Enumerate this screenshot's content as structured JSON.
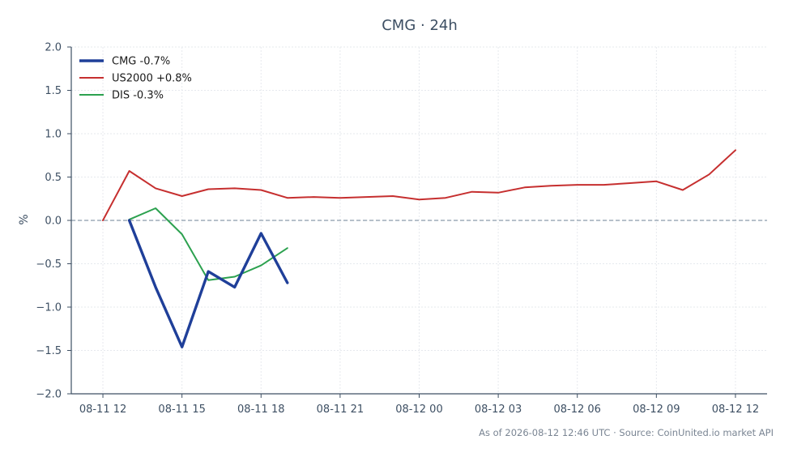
{
  "chart_data": {
    "type": "line",
    "title": "CMG · 24h",
    "ylabel": "%",
    "xlabel": "",
    "ylim": [
      -2.0,
      2.0
    ],
    "y_ticks": [
      2.0,
      1.5,
      1.0,
      0.5,
      0.0,
      -0.5,
      -1.0,
      -1.5,
      -2.0
    ],
    "y_tick_labels": [
      "2.0",
      "1.5",
      "1.0",
      "0.5",
      "0.0",
      "−0.5",
      "−1.0",
      "−1.5",
      "−2.0"
    ],
    "x_ticks": [
      "08-11 12",
      "08-11 15",
      "08-11 18",
      "08-11 21",
      "08-12 00",
      "08-12 03",
      "08-12 06",
      "08-12 09",
      "08-12 12"
    ],
    "xlim_hours": [
      -1.2,
      25.2
    ],
    "grid": true,
    "baseline": 0.0,
    "legend_position": "top-left",
    "series": [
      {
        "name": "CMG -0.7%",
        "color": "#1f3f99",
        "x_hours": [
          1,
          2,
          3,
          4,
          5,
          6,
          7
        ],
        "values": [
          0.0,
          -0.77,
          -1.46,
          -0.59,
          -0.77,
          -0.15,
          -0.72
        ]
      },
      {
        "name": "US2000 +0.8%",
        "color": "#c62f2f",
        "x_hours": [
          0,
          1,
          2,
          3,
          4,
          5,
          6,
          7,
          8,
          9,
          10,
          11,
          12,
          13,
          14,
          15,
          16,
          17,
          18,
          19,
          20,
          21,
          22,
          23,
          24
        ],
        "values": [
          0.0,
          0.57,
          0.37,
          0.28,
          0.36,
          0.37,
          0.35,
          0.26,
          0.27,
          0.26,
          0.27,
          0.28,
          0.24,
          0.26,
          0.33,
          0.32,
          0.38,
          0.4,
          0.41,
          0.41,
          0.43,
          0.45,
          0.35,
          0.53,
          0.81
        ]
      },
      {
        "name": "DIS -0.3%",
        "color": "#2ca14f",
        "x_hours": [
          1,
          2,
          3,
          4,
          5,
          6,
          7
        ],
        "values": [
          0.01,
          0.14,
          -0.16,
          -0.69,
          -0.65,
          -0.52,
          -0.32
        ]
      }
    ],
    "footer": "As of 2026-08-12 12:46 UTC · Source: CoinUnited.io market API"
  }
}
